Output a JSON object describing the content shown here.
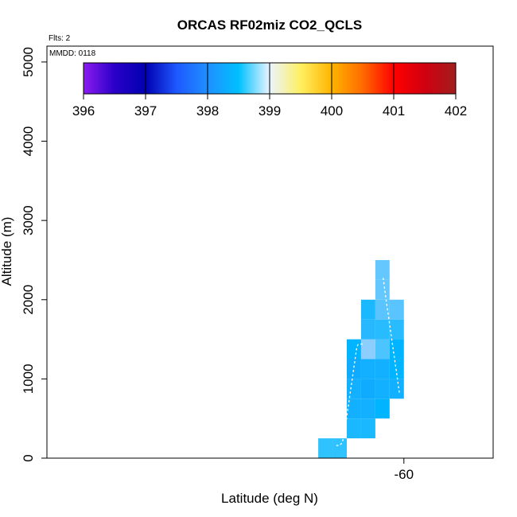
{
  "chart_data": {
    "type": "heatmap",
    "title": "ORCAS RF02miz CO2_QCLS",
    "flights_label": "Flts: 2",
    "date_label": "MMDD: 0118",
    "xlabel": "Latitude (deg N)",
    "ylabel": "Altitude (m)",
    "xlim": [
      -60.5,
      -59.875
    ],
    "ylim": [
      0,
      5200
    ],
    "x_tick_labels": [
      {
        "value": -60,
        "label": "-60"
      }
    ],
    "y_tick_labels": [
      {
        "value": 0,
        "label": "0"
      },
      {
        "value": 1000,
        "label": "1000"
      },
      {
        "value": 2000,
        "label": "2000"
      },
      {
        "value": 3000,
        "label": "3000"
      },
      {
        "value": 4000,
        "label": "4000"
      },
      {
        "value": 5000,
        "label": "5000"
      }
    ],
    "colorbar": {
      "min": 396,
      "max": 402,
      "tick_labels": [
        "396",
        "397",
        "398",
        "399",
        "400",
        "401",
        "402"
      ],
      "stops": [
        {
          "v": 396.0,
          "c": "#8c1cf0"
        },
        {
          "v": 396.5,
          "c": "#2a00c8"
        },
        {
          "v": 397.0,
          "c": "#0000b0"
        },
        {
          "v": 397.5,
          "c": "#1e58ff"
        },
        {
          "v": 398.0,
          "c": "#1e90ff"
        },
        {
          "v": 398.5,
          "c": "#00c0ff"
        },
        {
          "v": 399.0,
          "c": "#eaf4ff"
        },
        {
          "v": 399.5,
          "c": "#fff060"
        },
        {
          "v": 400.0,
          "c": "#ffb400"
        },
        {
          "v": 400.5,
          "c": "#ff6a00"
        },
        {
          "v": 401.0,
          "c": "#ff0000"
        },
        {
          "v": 401.5,
          "c": "#d00010"
        },
        {
          "v": 402.0,
          "c": "#a01e1e"
        }
      ]
    },
    "cells": [
      {
        "lat": -60.11,
        "alt": 125,
        "color": "#2ec2ff"
      },
      {
        "lat": -60.09,
        "alt": 125,
        "color": "#2ec2ff"
      },
      {
        "lat": -60.07,
        "alt": 375,
        "color": "#1ab8ff"
      },
      {
        "lat": -60.07,
        "alt": 625,
        "color": "#12b0ff"
      },
      {
        "lat": -60.07,
        "alt": 875,
        "color": "#12b0ff"
      },
      {
        "lat": -60.07,
        "alt": 1125,
        "color": "#10aaff"
      },
      {
        "lat": -60.07,
        "alt": 1375,
        "color": "#00b4ff"
      },
      {
        "lat": -60.05,
        "alt": 375,
        "color": "#1ab8ff"
      },
      {
        "lat": -60.05,
        "alt": 625,
        "color": "#12b0ff"
      },
      {
        "lat": -60.05,
        "alt": 875,
        "color": "#10aaff"
      },
      {
        "lat": -60.05,
        "alt": 1125,
        "color": "#12b0ff"
      },
      {
        "lat": -60.05,
        "alt": 1375,
        "color": "#8ccfff"
      },
      {
        "lat": -60.05,
        "alt": 1625,
        "color": "#28b8ff"
      },
      {
        "lat": -60.05,
        "alt": 1875,
        "color": "#1ab8ff"
      },
      {
        "lat": -60.03,
        "alt": 625,
        "color": "#00b4ff"
      },
      {
        "lat": -60.03,
        "alt": 875,
        "color": "#12b0ff"
      },
      {
        "lat": -60.03,
        "alt": 1125,
        "color": "#12b0ff"
      },
      {
        "lat": -60.03,
        "alt": 1375,
        "color": "#4cc4ff"
      },
      {
        "lat": -60.03,
        "alt": 1625,
        "color": "#28bcff"
      },
      {
        "lat": -60.03,
        "alt": 1875,
        "color": "#5ac4ff"
      },
      {
        "lat": -60.03,
        "alt": 2125,
        "color": "#64c8ff"
      },
      {
        "lat": -60.03,
        "alt": 2375,
        "color": "#64c8ff"
      },
      {
        "lat": -60.01,
        "alt": 875,
        "color": "#12b0ff"
      },
      {
        "lat": -60.01,
        "alt": 1125,
        "color": "#00b4ff"
      },
      {
        "lat": -60.01,
        "alt": 1375,
        "color": "#00b4ff"
      },
      {
        "lat": -60.01,
        "alt": 1625,
        "color": "#28bcff"
      },
      {
        "lat": -60.01,
        "alt": 1875,
        "color": "#5ac4ff"
      }
    ],
    "flight_tracks": [
      {
        "points": [
          [
            -60.094,
            160
          ],
          [
            -60.09,
            160
          ],
          [
            -60.086,
            200
          ],
          [
            -60.082,
            400
          ],
          [
            -60.078,
            650
          ],
          [
            -60.074,
            900
          ],
          [
            -60.07,
            1150
          ],
          [
            -60.066,
            1400
          ],
          [
            -60.064,
            1440
          ],
          [
            -60.057,
            1440
          ]
        ]
      },
      {
        "points": [
          [
            -60.029,
            2270
          ],
          [
            -60.025,
            2000
          ],
          [
            -60.021,
            1750
          ],
          [
            -60.017,
            1500
          ],
          [
            -60.013,
            1250
          ],
          [
            -60.009,
            1000
          ],
          [
            -60.006,
            800
          ]
        ]
      }
    ]
  }
}
